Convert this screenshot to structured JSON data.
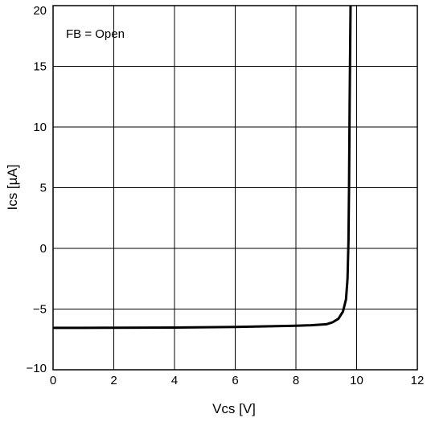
{
  "chart_data": {
    "type": "line",
    "xlabel": "Vcs [V]",
    "ylabel": "Ics [µA]",
    "xlim": [
      0,
      12
    ],
    "ylim": [
      -10,
      20
    ],
    "x_ticks": [
      0,
      2,
      4,
      6,
      8,
      10,
      12
    ],
    "y_ticks": [
      20,
      15,
      10,
      5,
      0,
      -5,
      -10
    ],
    "x_tick_labels": [
      "0",
      "2",
      "4",
      "6",
      "8",
      "10",
      "12"
    ],
    "y_tick_labels": [
      "20",
      "15",
      "10",
      "5",
      "0",
      "−5",
      "−10"
    ],
    "grid": true,
    "annotation": "FB = Open",
    "line_color": "#000000",
    "series": [
      {
        "x": [
          0,
          1,
          2,
          3,
          4,
          5,
          6,
          7,
          8,
          8.5,
          9.0,
          9.2,
          9.4,
          9.55,
          9.65,
          9.7,
          9.73,
          9.75,
          9.77,
          9.8
        ],
        "y": [
          -6.55,
          -6.55,
          -6.54,
          -6.53,
          -6.52,
          -6.5,
          -6.47,
          -6.42,
          -6.37,
          -6.33,
          -6.25,
          -6.1,
          -5.8,
          -5.2,
          -4.2,
          -2.5,
          0.5,
          5,
          12,
          20
        ]
      }
    ]
  }
}
